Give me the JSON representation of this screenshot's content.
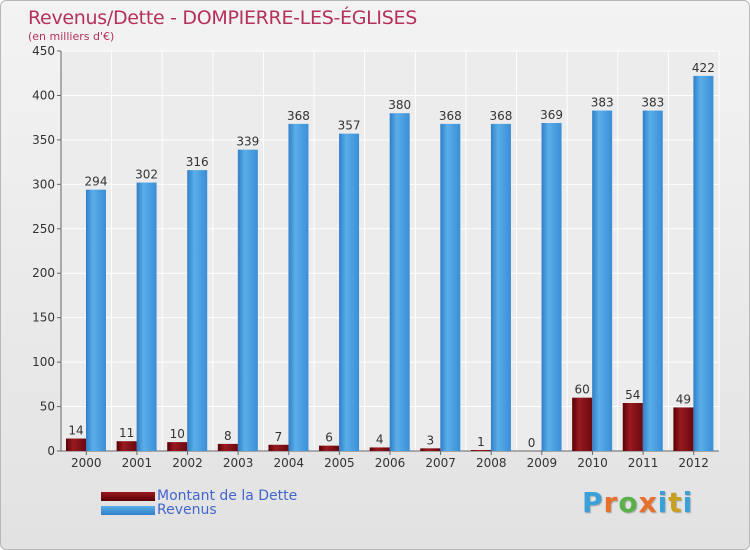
{
  "title": "Revenus/Dette - DOMPIERRE-LES-ÉGLISES",
  "unit_label": "(en milliers d'€)",
  "legend": [
    {
      "label": "Montant de la Dette",
      "color": "#7a0a10"
    },
    {
      "label": "Revenus",
      "color": "#4a9fe0"
    }
  ],
  "logo": {
    "text": "Proxiti",
    "colors": [
      "#3aa0d8",
      "#e8702a",
      "#5ab04a",
      "#e8702a",
      "#3aa0d8",
      "#c8a020",
      "#3aa0d8"
    ]
  },
  "chart_data": {
    "type": "bar",
    "categories": [
      "2000",
      "2001",
      "2002",
      "2003",
      "2004",
      "2005",
      "2006",
      "2007",
      "2008",
      "2009",
      "2010",
      "2011",
      "2012"
    ],
    "series": [
      {
        "name": "Montant de la Dette",
        "color": "#7a0a10",
        "values": [
          14,
          11,
          10,
          8,
          7,
          6,
          4,
          3,
          1,
          0,
          60,
          54,
          49
        ]
      },
      {
        "name": "Revenus",
        "color": "#4a9fe0",
        "values": [
          294,
          302,
          316,
          339,
          368,
          357,
          380,
          368,
          368,
          369,
          383,
          383,
          422
        ]
      }
    ],
    "ylim": [
      0,
      450
    ],
    "yticks": [
      0,
      50,
      100,
      150,
      200,
      250,
      300,
      350,
      400,
      450
    ],
    "grid": true
  }
}
